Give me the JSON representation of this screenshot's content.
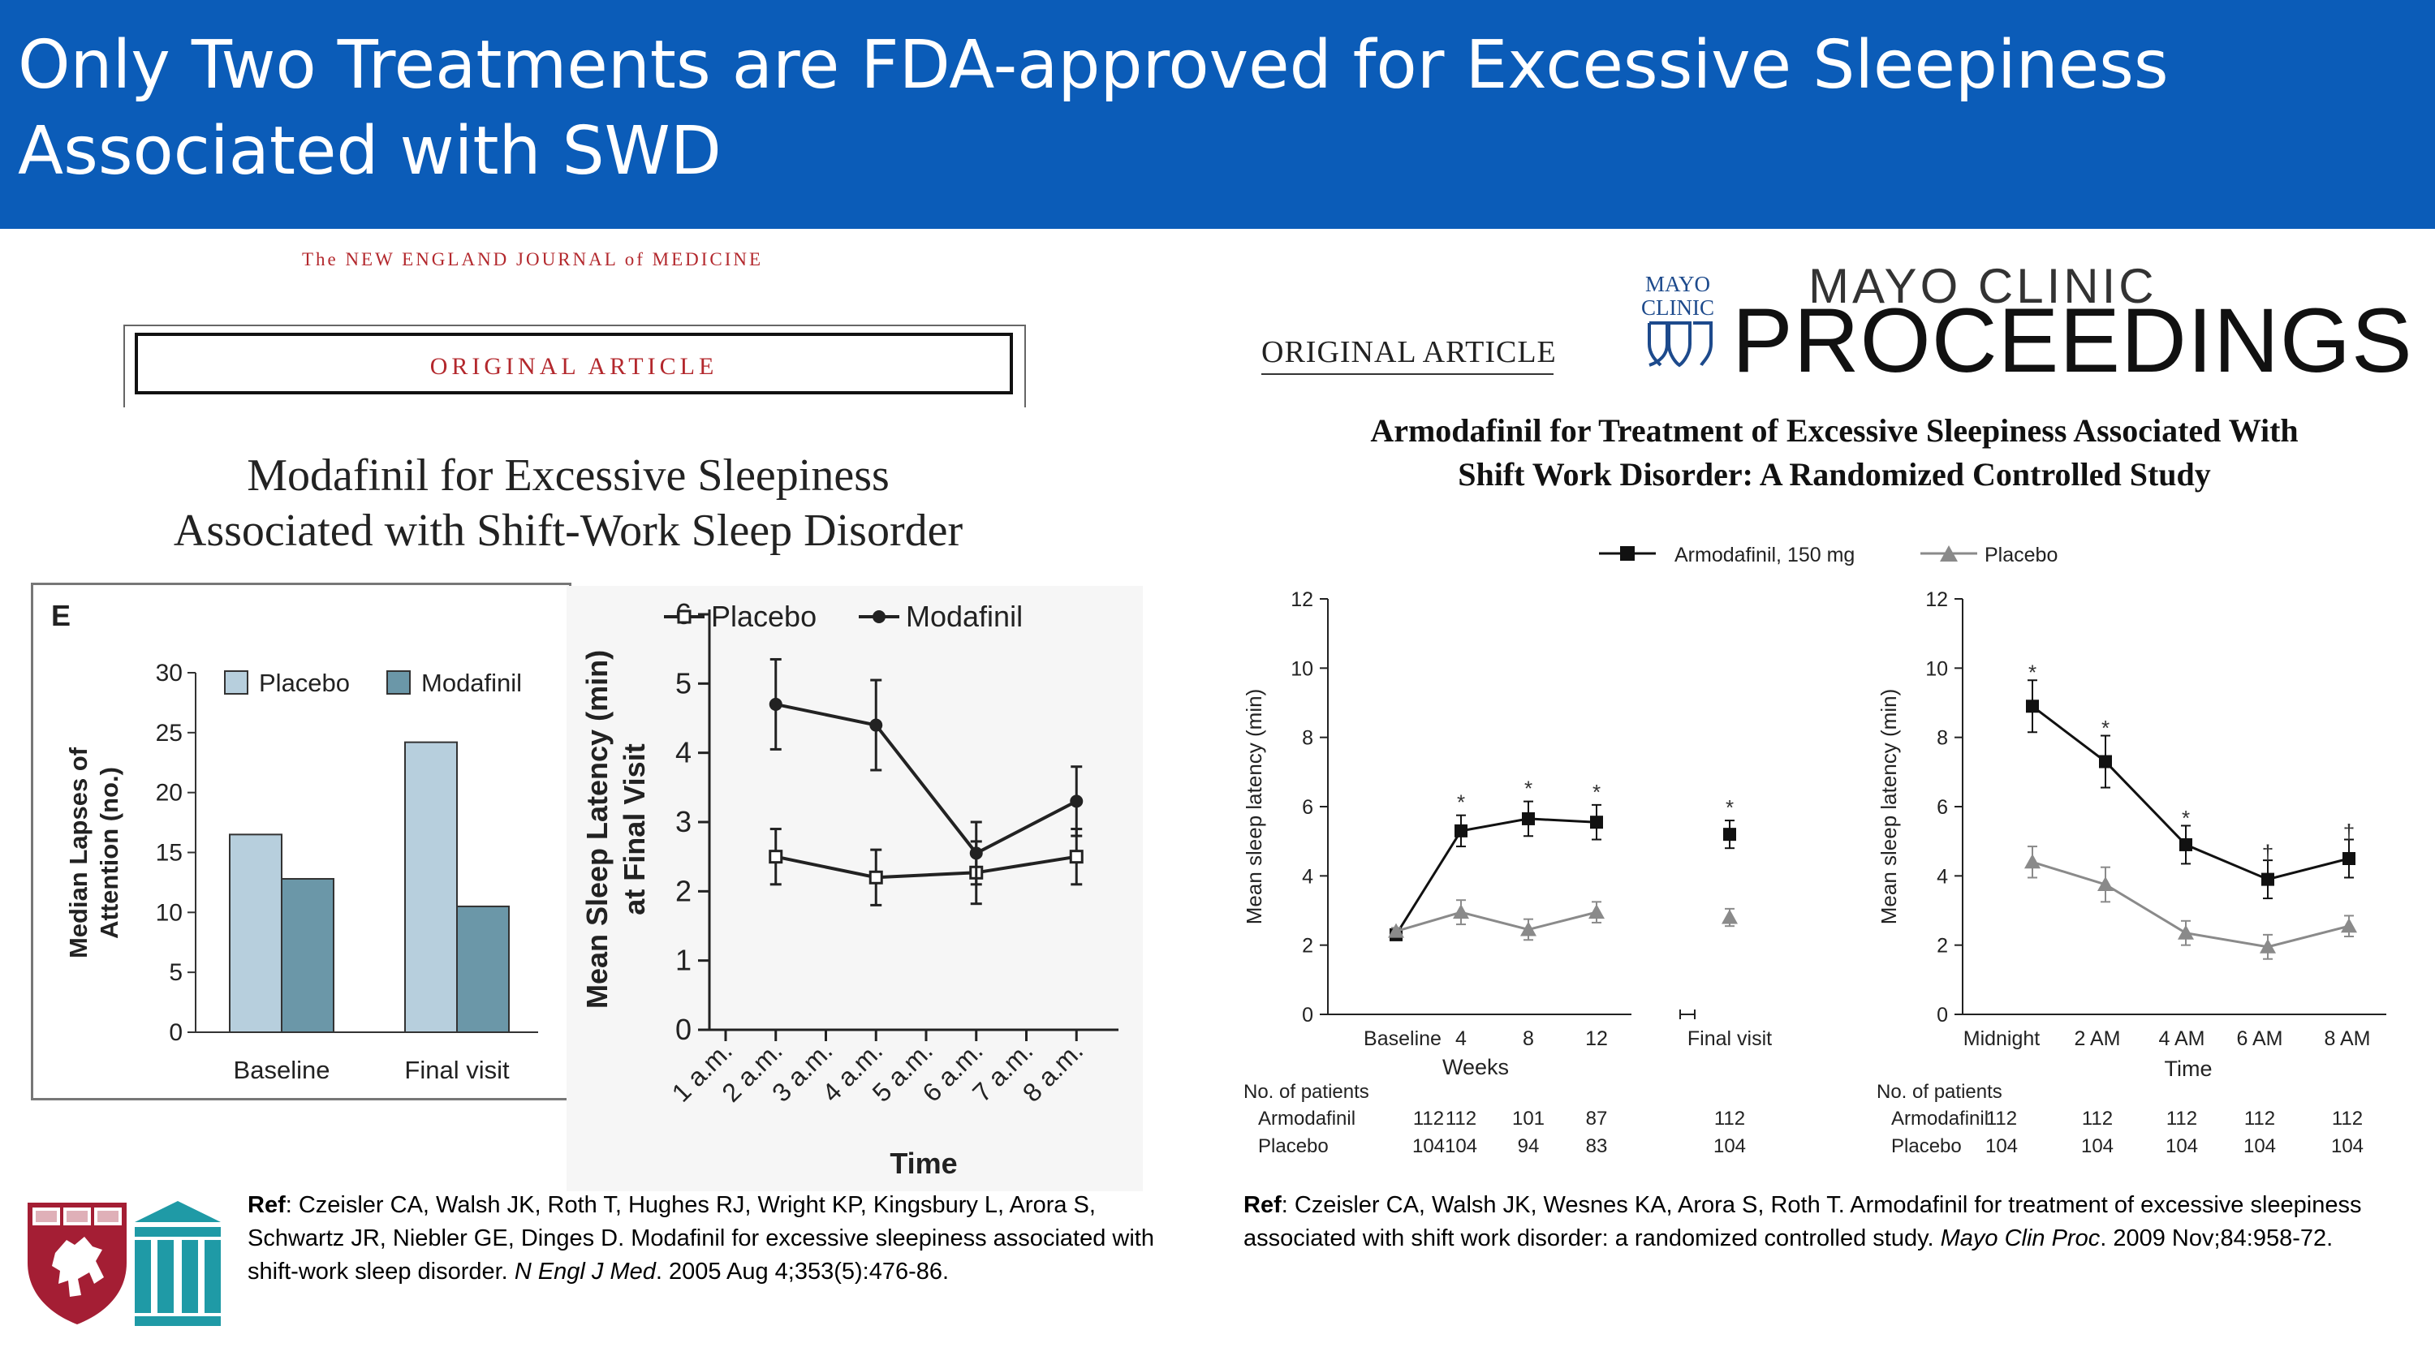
{
  "slide_title": "Only Two Treatments are FDA-approved for Excessive Sleepiness Associated with SWD",
  "nejm": {
    "masthead": "The NEW ENGLAND JOURNAL of MEDICINE",
    "article_label": "ORIGINAL ARTICLE",
    "title_line1": "Modafinil for Excessive Sleepiness",
    "title_line2": "Associated with Shift-Work Sleep Disorder"
  },
  "mayo": {
    "article_label": "ORIGINAL ARTICLE",
    "logo_small": "MAYO CLINIC",
    "brand": "MAYO CLINIC",
    "proceedings": "PROCEEDINGS",
    "title_line1": "Armodafinil for Treatment of Excessive Sleepiness Associated With",
    "title_line2": "Shift Work Disorder: A Randomized Controlled Study"
  },
  "refs": {
    "left": {
      "label": "Ref",
      "body": ": Czeisler CA, Walsh JK, Roth T, Hughes RJ, Wright KP, Kingsbury L, Arora S, Schwartz JR, Niebler GE, Dinges D. Modafinil for excessive sleepiness associated with shift-work sleep  disorder. ",
      "journal": "N Engl J Med",
      "tail": ". 2005 Aug 4;353(5):476-86."
    },
    "right": {
      "label": "Ref",
      "body": ": Czeisler CA, Walsh JK, Wesnes KA, Arora S, Roth T. Armodafinil for treatment of excessive sleepiness associated with shift work disorder: a randomized controlled study. ",
      "journal": "Mayo Clin Proc",
      "tail": ". 2009 Nov;84:958-72."
    }
  },
  "colors": {
    "title_bar": "#0b5cb8",
    "placebo_bar": "#b7cfdd",
    "modafinil_bar": "#6b97a8",
    "nejm_red": "#b3282d",
    "mayo_blue": "#1d4a8c",
    "armodafinil": "#111111",
    "placebo_grey": "#8a8a8a",
    "harvard_red": "#a41e34",
    "teal": "#1f9aa6"
  },
  "icons": [
    "harvard-shield-icon",
    "hospital-columns-icon",
    "mayo-shield-icon"
  ],
  "chart_data": [
    {
      "type": "bar",
      "panel_label": "E",
      "categories": [
        "Baseline",
        "Final visit"
      ],
      "series": [
        {
          "name": "Placebo",
          "values": [
            16.5,
            24.2
          ]
        },
        {
          "name": "Modafinil",
          "values": [
            12.8,
            10.5
          ]
        }
      ],
      "ylabel_line1": "Median Lapses of",
      "ylabel_line2": "Attention (no.)",
      "ylim": [
        0,
        30
      ],
      "yticks": [
        "0",
        "5",
        "10",
        "15",
        "20",
        "25",
        "30"
      ]
    },
    {
      "type": "line",
      "x": [
        "1 a.m.",
        "2 a.m.",
        "3 a.m.",
        "4 a.m.",
        "5 a.m.",
        "6 a.m.",
        "7 a.m.",
        "8 a.m."
      ],
      "xlabel": "Time",
      "ylabel_line1": "Mean Sleep Latency (min)",
      "ylabel_line2": "at Final Visit",
      "ylim": [
        0,
        6
      ],
      "yticks": [
        "0",
        "1",
        "2",
        "3",
        "4",
        "5",
        "6"
      ],
      "series": [
        {
          "name": "Placebo",
          "points": [
            [
              1,
              2.5,
              0.4
            ],
            [
              3,
              2.2,
              0.4
            ],
            [
              5,
              2.27,
              0.45
            ],
            [
              7,
              2.5,
              0.4
            ]
          ]
        },
        {
          "name": "Modafinil",
          "points": [
            [
              1,
              4.7,
              0.65
            ],
            [
              3,
              4.4,
              0.65
            ],
            [
              5,
              2.55,
              0.45
            ],
            [
              7,
              3.3,
              0.5
            ]
          ]
        }
      ]
    },
    {
      "type": "line",
      "legend": [
        "Armodafinil, 150 mg",
        "Placebo"
      ],
      "x": [
        "Baseline",
        "4",
        "8",
        "12",
        "Final visit"
      ],
      "xlabel": "Weeks",
      "ylabel": "Mean sleep latency (min)",
      "ylim": [
        0,
        12
      ],
      "yticks": [
        "0",
        "2",
        "4",
        "6",
        "8",
        "10",
        "12"
      ],
      "series": [
        {
          "name": "Armodafinil, 150 mg",
          "points": [
            [
              0,
              2.3,
              0.1
            ],
            [
              1,
              5.3,
              0.45
            ],
            [
              2,
              5.65,
              0.5
            ],
            [
              3,
              5.55,
              0.5
            ],
            [
              4,
              5.2,
              0.4
            ]
          ]
        },
        {
          "name": "Placebo",
          "points": [
            [
              0,
              2.4,
              0.1
            ],
            [
              1,
              2.95,
              0.35
            ],
            [
              2,
              2.45,
              0.3
            ],
            [
              3,
              2.95,
              0.3
            ],
            [
              4,
              2.8,
              0.25
            ]
          ]
        }
      ],
      "annotations": [
        {
          "text": "*",
          "x": 1,
          "y": 6.1
        },
        {
          "text": "*",
          "x": 2,
          "y": 6.5
        },
        {
          "text": "*",
          "x": 3,
          "y": 6.4
        },
        {
          "text": "*",
          "x": 4,
          "y": 5.95
        }
      ],
      "patients": {
        "title": "No. of patients",
        "rows": [
          {
            "name": "Armodafinil",
            "values": [
              "112",
              "112",
              "101",
              "87",
              "112"
            ]
          },
          {
            "name": "Placebo",
            "values": [
              "104",
              "104",
              "94",
              "83",
              "104"
            ]
          }
        ]
      }
    },
    {
      "type": "line",
      "x": [
        "Midnight",
        "2 AM",
        "4 AM",
        "6 AM",
        "8 AM"
      ],
      "xlabel": "Time",
      "ylabel": "Mean sleep latency (min)",
      "ylim": [
        0,
        12
      ],
      "yticks": [
        "0",
        "2",
        "4",
        "6",
        "8",
        "10",
        "12"
      ],
      "series": [
        {
          "name": "Armodafinil, 150 mg",
          "points": [
            [
              0,
              8.9,
              0.75
            ],
            [
              1,
              7.3,
              0.75
            ],
            [
              2,
              4.9,
              0.55
            ],
            [
              3,
              3.9,
              0.55
            ],
            [
              4,
              4.5,
              0.55
            ]
          ]
        },
        {
          "name": "Placebo",
          "points": [
            [
              0,
              4.4,
              0.45
            ],
            [
              1,
              3.75,
              0.5
            ],
            [
              2,
              2.35,
              0.35
            ],
            [
              3,
              1.95,
              0.35
            ],
            [
              4,
              2.55,
              0.3
            ]
          ]
        }
      ],
      "annotations": [
        {
          "text": "*",
          "x": 0,
          "y": 9.85
        },
        {
          "text": "*",
          "x": 1,
          "y": 8.25
        },
        {
          "text": "*",
          "x": 2,
          "y": 5.65
        },
        {
          "text": "†",
          "x": 3,
          "y": 4.65
        },
        {
          "text": "†",
          "x": 4,
          "y": 5.25
        }
      ],
      "patients": {
        "title": "No. of patients",
        "rows": [
          {
            "name": "Armodafinil",
            "values": [
              "112",
              "112",
              "112",
              "112",
              "112"
            ]
          },
          {
            "name": "Placebo",
            "values": [
              "104",
              "104",
              "104",
              "104",
              "104"
            ]
          }
        ]
      }
    }
  ]
}
